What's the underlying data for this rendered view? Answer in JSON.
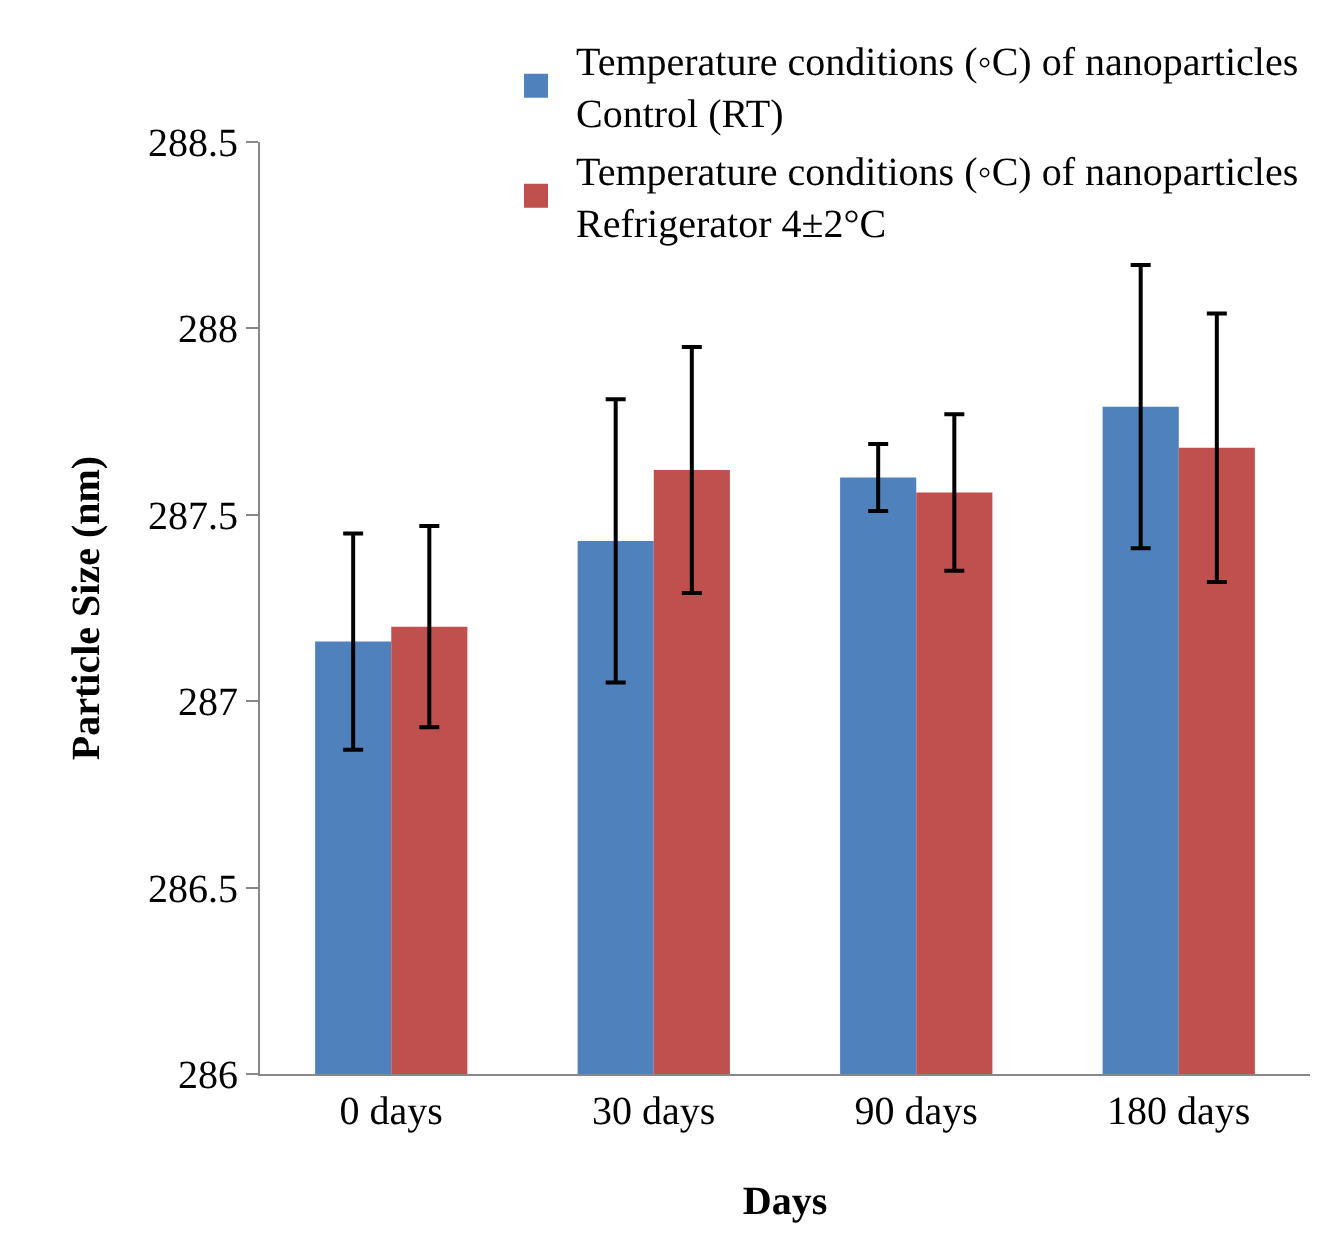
{
  "chart_data": {
    "type": "bar",
    "xlabel": "Days",
    "ylabel": "Particle Size (nm)",
    "categories": [
      "0 days",
      "30 days",
      "90 days",
      "180 days"
    ],
    "series": [
      {
        "name": "Temperature conditions (◦C) of nanoparticles\nControl (RT)",
        "color": "#4f81bd",
        "values": [
          287.16,
          287.43,
          287.6,
          287.79
        ],
        "errors": [
          0.29,
          0.38,
          0.09,
          0.38
        ]
      },
      {
        "name": "Temperature conditions (◦C) of nanoparticles\nRefrigerator 4±2°C",
        "color": "#c0504d",
        "values": [
          287.2,
          287.62,
          287.56,
          287.68
        ],
        "errors": [
          0.27,
          0.33,
          0.21,
          0.36
        ]
      }
    ],
    "ylim": [
      286,
      288.5
    ],
    "yticks": [
      286,
      286.5,
      287,
      287.5,
      288,
      288.5
    ],
    "grid": false,
    "legend": "top right"
  }
}
